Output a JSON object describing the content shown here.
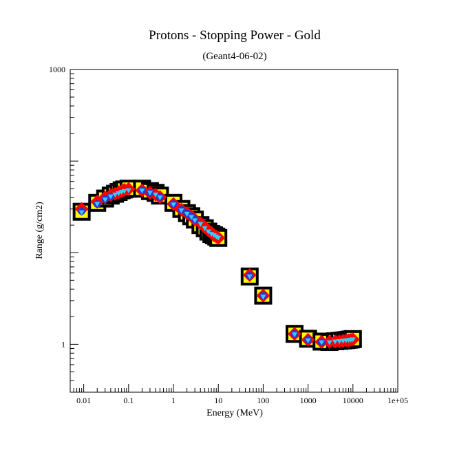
{
  "chart_data": {
    "type": "scatter",
    "title": "Protons - Stopping Power - Gold",
    "subtitle": "(Geant4-06-02)",
    "xlabel": "Energy (MeV)",
    "ylabel": "Range (g/cm2)",
    "xscale": "log",
    "yscale": "log",
    "xlim": [
      0.005,
      100000
    ],
    "ylim": [
      0.3,
      1000
    ],
    "grid": false,
    "x_tick_labels": [
      {
        "value": 0.01,
        "label": "0.01"
      },
      {
        "value": 0.1,
        "label": "0.1"
      },
      {
        "value": 1,
        "label": "1"
      },
      {
        "value": 10,
        "label": "10"
      },
      {
        "value": 100,
        "label": "100"
      },
      {
        "value": 1000,
        "label": "1000"
      },
      {
        "value": 10000,
        "label": "10000"
      },
      {
        "value": 100000,
        "label": "1e+05"
      }
    ],
    "y_tick_labels": [
      {
        "value": 1,
        "label": "1"
      },
      {
        "value": 1000,
        "label": "1000"
      }
    ],
    "series": [
      {
        "marker": "square",
        "color": "#000000",
        "fill": "#ffff00",
        "points": [
          [
            0.009,
            28
          ],
          [
            0.02,
            35
          ],
          [
            0.03,
            39
          ],
          [
            0.04,
            42
          ],
          [
            0.05,
            44
          ],
          [
            0.06,
            46
          ],
          [
            0.07,
            48
          ],
          [
            0.08,
            49
          ],
          [
            0.1,
            50
          ],
          [
            0.2,
            50
          ],
          [
            0.3,
            47
          ],
          [
            0.4,
            45
          ],
          [
            0.5,
            42
          ],
          [
            1,
            35
          ],
          [
            1.5,
            30
          ],
          [
            2,
            27
          ],
          [
            2.5,
            25
          ],
          [
            3,
            23
          ],
          [
            4,
            20
          ],
          [
            5,
            18.5
          ],
          [
            6,
            17
          ],
          [
            7,
            16
          ],
          [
            8,
            15.5
          ],
          [
            9,
            15
          ],
          [
            10,
            14.5
          ],
          [
            50,
            5.5
          ],
          [
            100,
            3.4
          ],
          [
            500,
            1.3
          ],
          [
            1000,
            1.15
          ],
          [
            2000,
            1.07
          ],
          [
            3000,
            1.06
          ],
          [
            4000,
            1.08
          ],
          [
            5000,
            1.09
          ],
          [
            6000,
            1.1
          ],
          [
            7000,
            1.11
          ],
          [
            8000,
            1.12
          ],
          [
            9000,
            1.13
          ],
          [
            10000,
            1.14
          ]
        ]
      },
      {
        "marker": "diamond",
        "color": "#ff0000",
        "points": [
          [
            0.009,
            30
          ],
          [
            0.02,
            36
          ],
          [
            0.03,
            40
          ],
          [
            0.04,
            42.5
          ],
          [
            0.05,
            44
          ],
          [
            0.06,
            45.5
          ],
          [
            0.07,
            47
          ],
          [
            0.08,
            48.5
          ],
          [
            0.1,
            49.5
          ],
          [
            0.2,
            48
          ],
          [
            0.3,
            45
          ],
          [
            0.4,
            43
          ],
          [
            0.5,
            40.5
          ],
          [
            1,
            34
          ],
          [
            1.5,
            29.5
          ],
          [
            2,
            27
          ],
          [
            2.5,
            25
          ],
          [
            3,
            23
          ],
          [
            4,
            21
          ],
          [
            5,
            19
          ],
          [
            6,
            17.5
          ],
          [
            7,
            16.5
          ],
          [
            8,
            15.5
          ],
          [
            9,
            15
          ],
          [
            10,
            14.5
          ],
          [
            50,
            5.7
          ],
          [
            100,
            3.4
          ],
          [
            500,
            1.3
          ],
          [
            1000,
            1.12
          ],
          [
            2000,
            1.06
          ],
          [
            3000,
            1.06
          ],
          [
            4000,
            1.07
          ],
          [
            5000,
            1.08
          ],
          [
            6000,
            1.09
          ],
          [
            7000,
            1.1
          ],
          [
            8000,
            1.11
          ],
          [
            9000,
            1.12
          ],
          [
            10000,
            1.13
          ]
        ]
      },
      {
        "marker": "circle",
        "color": "#3333cc",
        "points": [
          [
            0.009,
            28.5
          ],
          [
            0.02,
            34
          ],
          [
            0.03,
            38.5
          ],
          [
            0.04,
            41
          ],
          [
            0.2,
            48
          ],
          [
            0.3,
            45
          ],
          [
            0.5,
            40.5
          ],
          [
            1,
            34
          ],
          [
            1.5,
            29.5
          ],
          [
            2,
            27
          ],
          [
            2.5,
            25
          ],
          [
            3,
            23
          ],
          [
            50,
            5.6
          ],
          [
            100,
            3.4
          ],
          [
            500,
            1.3
          ],
          [
            1000,
            1.12
          ],
          [
            2000,
            1.05
          ]
        ]
      },
      {
        "marker": "triangle-down",
        "color": "#33ccff",
        "points": [
          [
            0.009,
            27.5
          ],
          [
            0.02,
            34
          ],
          [
            0.03,
            38
          ],
          [
            0.04,
            41
          ],
          [
            0.05,
            43
          ],
          [
            0.06,
            44.5
          ],
          [
            0.07,
            46
          ],
          [
            0.08,
            47
          ],
          [
            0.1,
            48
          ],
          [
            0.2,
            47.5
          ],
          [
            0.3,
            45
          ],
          [
            0.4,
            43
          ],
          [
            0.5,
            40
          ],
          [
            1,
            33.5
          ],
          [
            1.5,
            29
          ],
          [
            2,
            26.5
          ],
          [
            2.5,
            24.5
          ],
          [
            3,
            22.5
          ],
          [
            4,
            20.5
          ],
          [
            5,
            18.5
          ],
          [
            6,
            17
          ],
          [
            7,
            16
          ],
          [
            8,
            15.5
          ],
          [
            9,
            15
          ],
          [
            10,
            14.5
          ],
          [
            50,
            5.5
          ],
          [
            100,
            3.3
          ],
          [
            500,
            1.28
          ],
          [
            1000,
            1.1
          ],
          [
            2000,
            1.05
          ],
          [
            3000,
            1.05
          ],
          [
            4000,
            1.07
          ],
          [
            5000,
            1.08
          ],
          [
            6000,
            1.09
          ],
          [
            7000,
            1.1
          ],
          [
            8000,
            1.11
          ],
          [
            9000,
            1.12
          ],
          [
            10000,
            1.13
          ]
        ]
      }
    ]
  }
}
